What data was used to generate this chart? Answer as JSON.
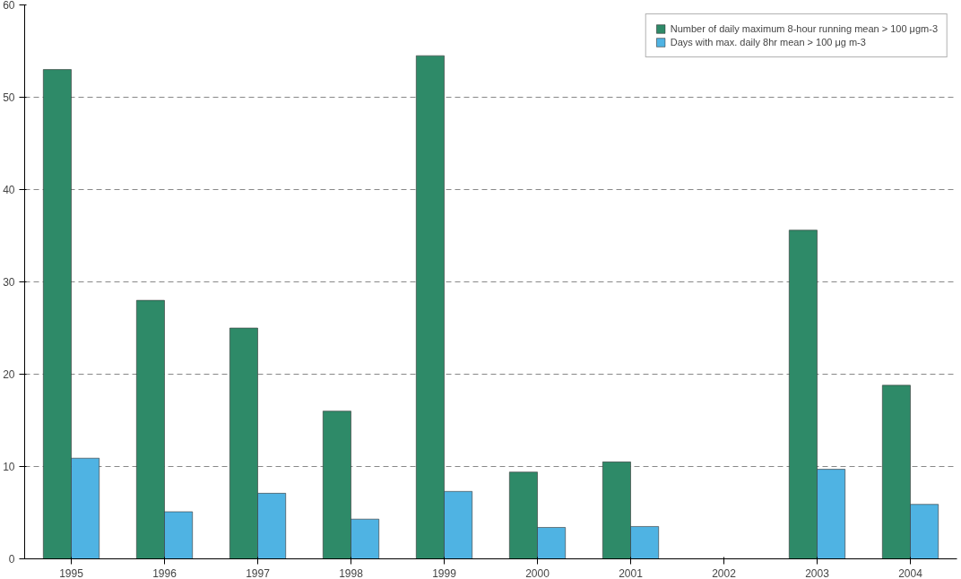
{
  "chart_data": {
    "type": "bar",
    "categories": [
      "1995",
      "1996",
      "1997",
      "1998",
      "1999",
      "2000",
      "2001",
      "2002",
      "2003",
      "2004"
    ],
    "series": [
      {
        "name": "Number of daily maximum 8-hour running mean > 100 μgm-3",
        "color": "#2e8a68",
        "values": [
          53,
          28,
          25,
          16,
          54.5,
          9.4,
          10.5,
          null,
          35.6,
          18.8
        ]
      },
      {
        "name": "Days with max. daily 8hr mean > 100 μg m-3",
        "color": "#4fb3e3",
        "values": [
          10.9,
          5.1,
          7.1,
          4.3,
          7.3,
          3.4,
          3.5,
          null,
          9.7,
          5.9
        ]
      }
    ],
    "ylim": [
      0,
      60
    ],
    "yticks": [
      0,
      10,
      20,
      30,
      40,
      50,
      60
    ],
    "grid": "y",
    "legend": "top right"
  }
}
